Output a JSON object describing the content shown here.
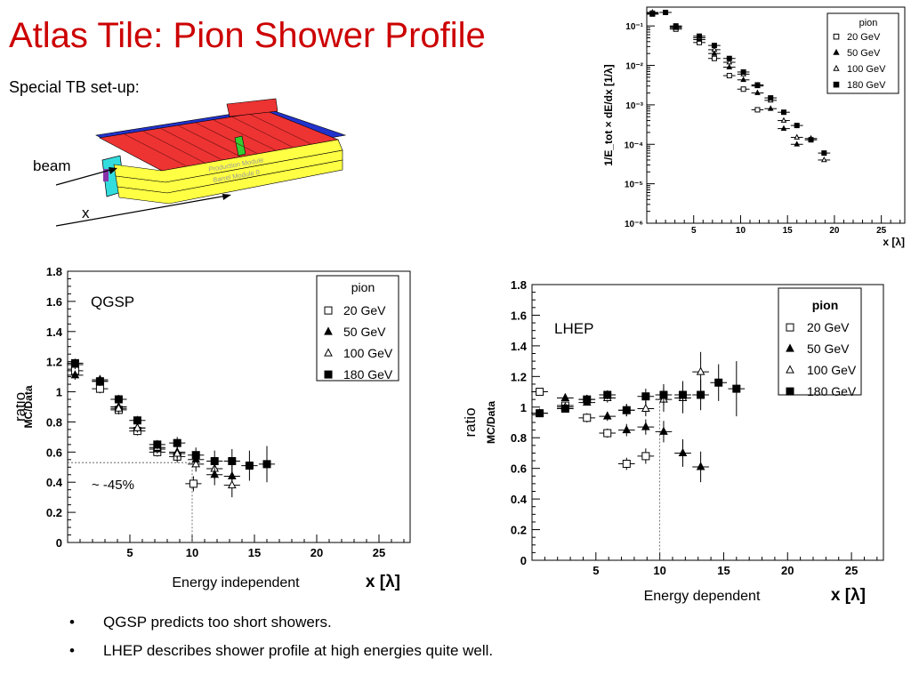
{
  "slide": {
    "title": "Atlas Tile: Pion Shower Profile",
    "setup_label": "Special TB set-up:",
    "beam_label": "beam",
    "x_label": "x",
    "module_labels": [
      "Production Module",
      "Barrel Module 0"
    ],
    "bullets": [
      "QGSP predicts too short showers.",
      "LHEP describes shower profile at high energies quite well."
    ],
    "bullet_glyph": "•"
  },
  "colors": {
    "title": "#cc0000",
    "module_red": "#ee3333",
    "module_yellow": "#ffff44",
    "module_blue": "#2233cc",
    "module_cyan": "#33dddd",
    "module_green": "#33cc33"
  },
  "chart_data": [
    {
      "id": "profile",
      "type": "scatter",
      "ylabel": "1/E_tot × dE/dx [1/λ]",
      "xlabel": "x [λ]",
      "xlim": [
        0,
        27.5
      ],
      "ylog": true,
      "ylim": [
        1e-06,
        0.3
      ],
      "xticks": [
        5,
        10,
        15,
        20,
        25
      ],
      "yticks": [
        {
          "value": 1e-06,
          "label": "10⁻⁶"
        },
        {
          "value": 1e-05,
          "label": "10⁻⁵"
        },
        {
          "value": 0.0001,
          "label": "10⁻⁴"
        },
        {
          "value": 0.001,
          "label": "10⁻³"
        },
        {
          "value": 0.01,
          "label": "10⁻²"
        },
        {
          "value": 0.1,
          "label": "10⁻¹"
        }
      ],
      "legend": {
        "title": "pion",
        "position": "top-right"
      },
      "series": [
        {
          "name": "20 GeV",
          "marker": "open-square",
          "x": [
            0.6,
            3.1,
            5.6,
            7.2,
            8.8,
            10.3,
            11.8
          ],
          "y": [
            0.21,
            0.083,
            0.038,
            0.015,
            0.0055,
            0.0025,
            0.00075
          ]
        },
        {
          "name": "50 GeV",
          "marker": "triangle",
          "x": [
            0.6,
            3.1,
            5.6,
            7.2,
            8.8,
            10.3,
            11.8,
            13.2,
            14.6,
            16.0
          ],
          "y": [
            0.2,
            0.09,
            0.045,
            0.02,
            0.009,
            0.0043,
            0.002,
            0.0008,
            0.00025,
            0.0001
          ]
        },
        {
          "name": "100 GeV",
          "marker": "open-triangle",
          "x": [
            0.6,
            3.1,
            5.6,
            7.2,
            8.8,
            10.3,
            11.8,
            13.2,
            14.6,
            16.0,
            17.5,
            18.9
          ],
          "y": [
            0.22,
            0.095,
            0.05,
            0.025,
            0.012,
            0.006,
            0.003,
            0.0013,
            0.0004,
            0.00015,
            0.00014,
            4e-05
          ]
        },
        {
          "name": "180 GeV",
          "marker": "square",
          "x": [
            0.6,
            2.0,
            3.1,
            5.6,
            7.2,
            8.8,
            10.3,
            11.8,
            13.2,
            14.6,
            16.0,
            17.5,
            18.9
          ],
          "y": [
            0.2,
            0.22,
            0.1,
            0.055,
            0.032,
            0.015,
            0.0068,
            0.0032,
            0.0015,
            0.00065,
            0.0003,
            0.00013,
            6e-05
          ]
        }
      ]
    },
    {
      "id": "qgsp",
      "type": "scatter",
      "ylabel": "MC/Data",
      "side_label": "ratio",
      "inset_label": "QGSP",
      "caption": "Energy independent",
      "xlabel": "x [λ]",
      "xlim": [
        0,
        27.5
      ],
      "ylim": [
        0,
        1.8
      ],
      "xticks": [
        5,
        10,
        15,
        20,
        25
      ],
      "yticks": [
        0,
        0.2,
        0.4,
        0.6,
        0.8,
        1,
        1.2,
        1.4,
        1.6,
        1.8
      ],
      "annotation": "~ -45%",
      "guide": {
        "x": 10,
        "y": 0.53
      },
      "legend": {
        "title": "pion",
        "position": "top-right"
      },
      "series": [
        {
          "name": "20 GeV",
          "marker": "open-square",
          "x": [
            0.6,
            2.6,
            4.1,
            5.6,
            7.2,
            8.8,
            10.1
          ],
          "y": [
            1.14,
            1.02,
            0.88,
            0.74,
            0.6,
            0.57,
            0.39
          ],
          "err": [
            0.03,
            0.03,
            0.03,
            0.03,
            0.03,
            0.04,
            0.05
          ]
        },
        {
          "name": "50 GeV",
          "marker": "triangle",
          "x": [
            0.6,
            2.6,
            4.1,
            5.6,
            7.2,
            8.8,
            10.3,
            11.8,
            13.2
          ],
          "y": [
            1.11,
            1.08,
            0.9,
            0.76,
            0.62,
            0.6,
            0.55,
            0.45,
            0.44
          ],
          "err": [
            0.03,
            0.03,
            0.03,
            0.03,
            0.03,
            0.04,
            0.05,
            0.07,
            0.08
          ]
        },
        {
          "name": "100 GeV",
          "marker": "open-triangle",
          "x": [
            0.6,
            2.6,
            4.1,
            5.6,
            7.2,
            8.8,
            10.3,
            11.8,
            13.2
          ],
          "y": [
            1.18,
            1.07,
            0.89,
            0.76,
            0.63,
            0.59,
            0.52,
            0.49,
            0.38
          ],
          "err": [
            0.03,
            0.03,
            0.03,
            0.03,
            0.03,
            0.04,
            0.05,
            0.07,
            0.08
          ]
        },
        {
          "name": "180 GeV",
          "marker": "square",
          "x": [
            0.6,
            2.6,
            4.1,
            5.6,
            7.2,
            8.8,
            10.3,
            11.8,
            13.2,
            14.6,
            16.0
          ],
          "y": [
            1.19,
            1.07,
            0.95,
            0.81,
            0.65,
            0.66,
            0.58,
            0.54,
            0.54,
            0.51,
            0.52
          ],
          "err": [
            0.03,
            0.03,
            0.03,
            0.03,
            0.03,
            0.04,
            0.05,
            0.07,
            0.08,
            0.1,
            0.12
          ]
        }
      ]
    },
    {
      "id": "lhep",
      "type": "scatter",
      "ylabel": "MC/Data",
      "side_label": "ratio",
      "inset_label": "LHEP",
      "caption": "Energy dependent",
      "xlabel": "x [λ]",
      "xlim": [
        0,
        27.5
      ],
      "ylim": [
        0,
        1.8
      ],
      "xticks": [
        5,
        10,
        15,
        20,
        25
      ],
      "yticks": [
        0,
        0.2,
        0.4,
        0.6,
        0.8,
        1,
        1.2,
        1.4,
        1.6,
        1.8
      ],
      "guide": {
        "x": 10
      },
      "legend": {
        "title": "pion",
        "position": "top-right"
      },
      "series": [
        {
          "name": "20 GeV",
          "marker": "open-square",
          "x": [
            0.6,
            2.6,
            4.3,
            5.9,
            7.4,
            8.9
          ],
          "y": [
            1.1,
            1.01,
            0.93,
            0.83,
            0.63,
            0.68
          ],
          "err": [
            0.02,
            0.02,
            0.03,
            0.03,
            0.04,
            0.05
          ]
        },
        {
          "name": "50 GeV",
          "marker": "triangle",
          "x": [
            2.6,
            4.3,
            5.9,
            7.4,
            8.9,
            10.3,
            11.8,
            13.2
          ],
          "y": [
            1.06,
            1.03,
            0.94,
            0.85,
            0.87,
            0.84,
            0.7,
            0.61
          ],
          "err": [
            0.02,
            0.02,
            0.03,
            0.04,
            0.05,
            0.07,
            0.09,
            0.1
          ]
        },
        {
          "name": "100 GeV",
          "marker": "open-triangle",
          "x": [
            0.6,
            2.6,
            4.3,
            5.9,
            7.4,
            8.9,
            10.3,
            11.8,
            13.2
          ],
          "y": [
            0.96,
            1.0,
            1.05,
            1.06,
            0.98,
            0.99,
            1.05,
            1.06,
            1.23
          ],
          "err": [
            0.02,
            0.02,
            0.03,
            0.03,
            0.04,
            0.05,
            0.08,
            0.1,
            0.13
          ]
        },
        {
          "name": "180 GeV",
          "marker": "square",
          "x": [
            0.6,
            2.6,
            4.3,
            5.9,
            7.4,
            8.9,
            10.3,
            11.8,
            13.2,
            14.6,
            16.0
          ],
          "y": [
            0.96,
            0.99,
            1.05,
            1.08,
            0.98,
            1.07,
            1.08,
            1.08,
            1.08,
            1.16,
            1.12
          ],
          "err": [
            0.02,
            0.02,
            0.03,
            0.03,
            0.04,
            0.05,
            0.07,
            0.09,
            0.1,
            0.12,
            0.18
          ]
        }
      ]
    }
  ]
}
